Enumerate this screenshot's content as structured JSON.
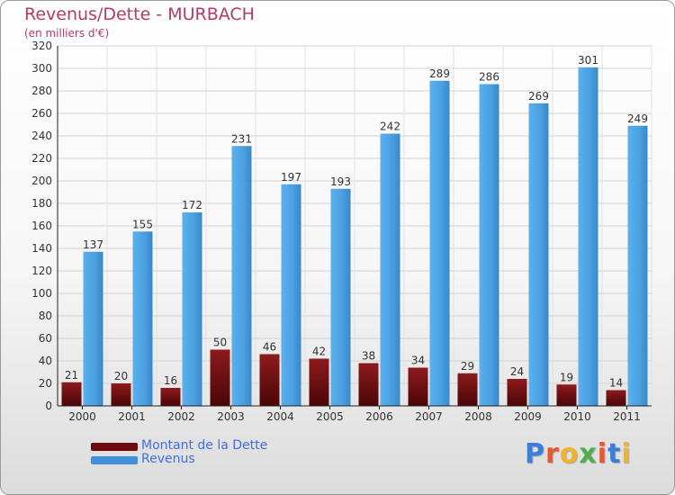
{
  "header": {
    "title": "Revenus/Dette - MURBACH",
    "subtitle": "(en milliers d'€)"
  },
  "chart_data": {
    "type": "bar",
    "categories": [
      "2000",
      "2001",
      "2002",
      "2003",
      "2004",
      "2005",
      "2006",
      "2007",
      "2008",
      "2009",
      "2010",
      "2011"
    ],
    "series": [
      {
        "name": "Montant de la Dette",
        "values": [
          21,
          20,
          16,
          50,
          46,
          42,
          38,
          34,
          29,
          24,
          19,
          14
        ],
        "color": "#7a0f12"
      },
      {
        "name": "Revenus",
        "values": [
          137,
          155,
          172,
          231,
          197,
          193,
          242,
          289,
          286,
          269,
          301,
          249
        ],
        "color": "#4aa0e2"
      }
    ],
    "ylim": [
      0,
      320
    ],
    "yticks": [
      0,
      20,
      40,
      60,
      80,
      100,
      120,
      140,
      160,
      180,
      200,
      220,
      240,
      260,
      280,
      300,
      320
    ],
    "grid": true,
    "legend": "bottom-left",
    "title": "Revenus/Dette - MURBACH",
    "subtitle": "(en milliers d'€)",
    "xlabel": "",
    "ylabel": ""
  },
  "legend": {
    "items": [
      {
        "label": "Montant de la Dette",
        "color": "#6e0a0e"
      },
      {
        "label": "Revenus",
        "color": "#3f8fdc"
      }
    ]
  },
  "logo": {
    "text": "Proxiti",
    "colors": [
      "#3a7fd5",
      "#e8552e",
      "#f0b32a",
      "#4bb04b",
      "#e8552e",
      "#3a7fd5",
      "#f0b32a"
    ]
  }
}
